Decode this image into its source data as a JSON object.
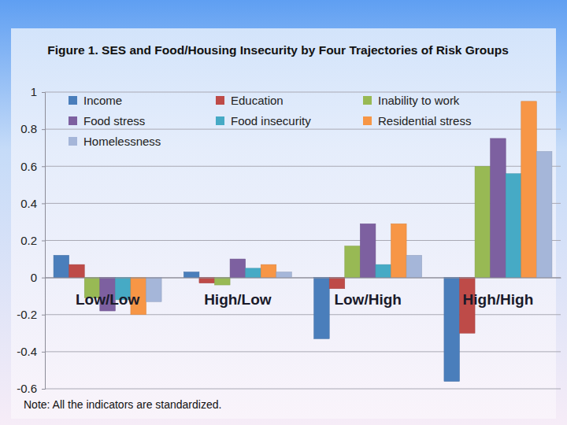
{
  "chart_data": {
    "type": "bar",
    "title": "Figure 1. SES and Food/Housing Insecurity by Four Trajectories of Risk Groups",
    "annotations": [
      "Note: All the indicators are standardized."
    ],
    "categories": [
      "Low/Low",
      "High/Low",
      "Low/High",
      "High/High"
    ],
    "series": [
      {
        "name": "Income",
        "color": "#4a7ebb",
        "values": [
          0.12,
          0.03,
          -0.33,
          -0.56
        ]
      },
      {
        "name": "Education",
        "color": "#be4b48",
        "values": [
          0.07,
          -0.03,
          -0.06,
          -0.3
        ]
      },
      {
        "name": "Inability to work",
        "color": "#98b954",
        "values": [
          -0.11,
          -0.04,
          0.17,
          0.6
        ]
      },
      {
        "name": "Food stress",
        "color": "#7d60a0",
        "values": [
          -0.18,
          0.1,
          0.29,
          0.75
        ]
      },
      {
        "name": "Food insecurity",
        "color": "#46aac5",
        "values": [
          -0.12,
          0.05,
          0.07,
          0.56
        ]
      },
      {
        "name": "Residential stress",
        "color": "#f79646",
        "values": [
          -0.2,
          0.07,
          0.29,
          0.95
        ]
      },
      {
        "name": "Homelessness",
        "color": "#a5b6d9",
        "values": [
          -0.13,
          0.03,
          0.12,
          0.68
        ]
      }
    ],
    "ylim": [
      -0.6,
      1
    ],
    "yticks": [
      -0.6,
      -0.4,
      -0.2,
      0,
      0.2,
      0.4,
      0.6,
      0.8,
      1
    ],
    "grid": true,
    "legend": "top-left"
  }
}
